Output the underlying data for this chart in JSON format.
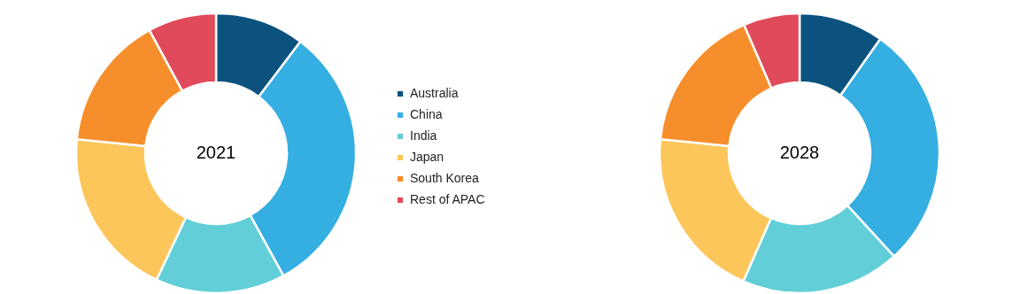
{
  "chart_data": [
    {
      "type": "donut",
      "title": "2021",
      "categories": [
        "Australia",
        "China",
        "India",
        "Japan",
        "South Korea",
        "Rest of APAC"
      ],
      "values": [
        10.3,
        31.7,
        15.0,
        19.6,
        15.5,
        7.9
      ],
      "colors": [
        "#0b527e",
        "#35aee2",
        "#62cfd8",
        "#fdc65b",
        "#f68f2b",
        "#e04a5a"
      ],
      "legend": "right"
    },
    {
      "type": "donut",
      "title": "2028",
      "categories": [
        null,
        null,
        null,
        null,
        null,
        null
      ],
      "values": [
        9.8,
        28.4,
        18.4,
        20.0,
        16.9,
        6.5
      ],
      "colors": [
        "#0b527e",
        "#35aee2",
        "#62cfd8",
        "#fdc65b",
        "#f68f2b",
        "#e04a5a"
      ]
    }
  ]
}
